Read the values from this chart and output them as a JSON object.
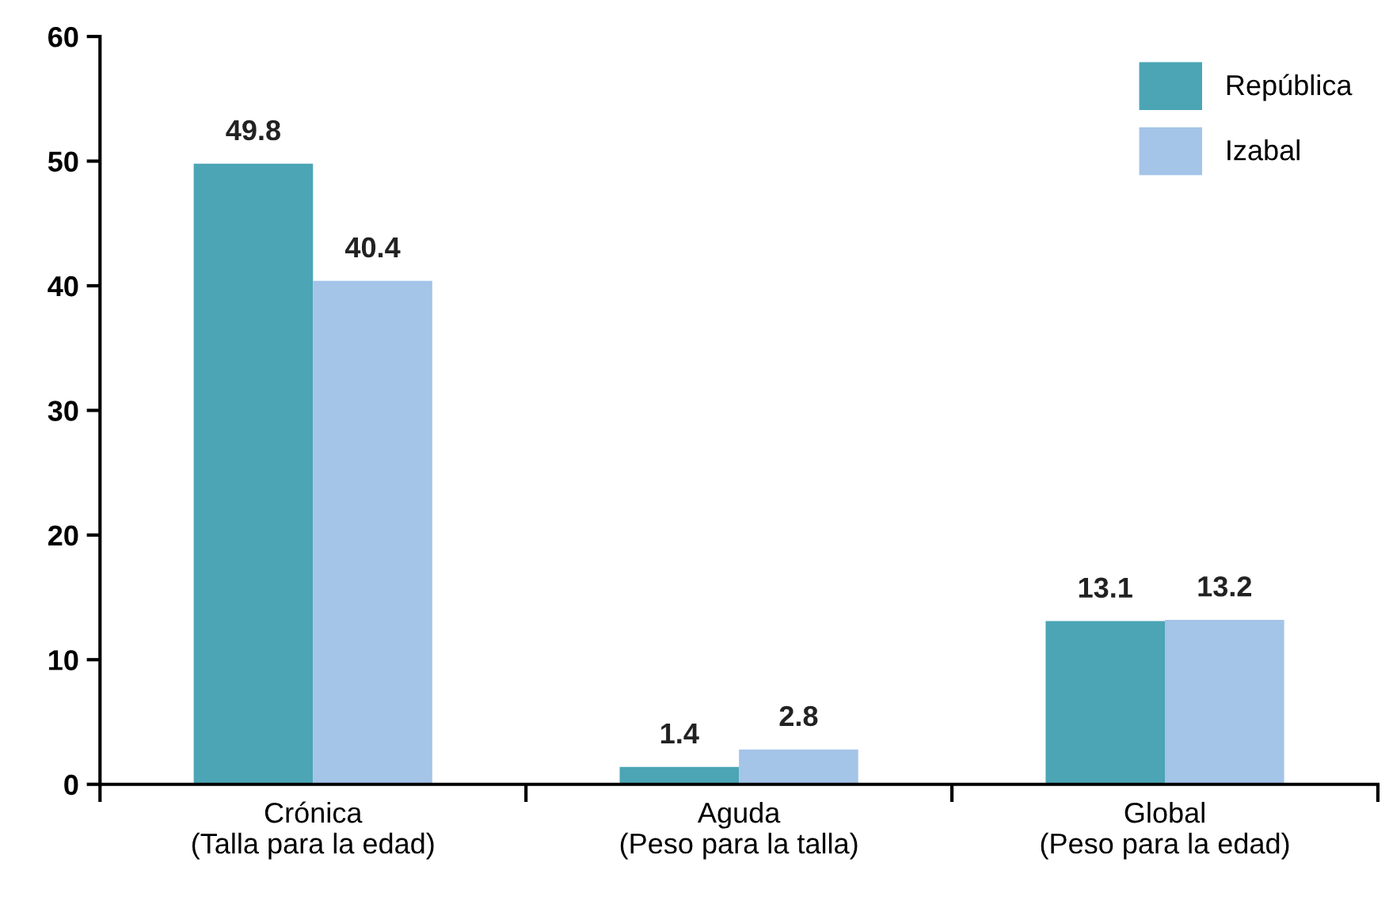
{
  "chart_data": {
    "type": "bar",
    "categories": [
      "Crónica\n(Talla para la edad)",
      "Aguda\n(Peso para la talla)",
      "Global\n(Peso para la edad)"
    ],
    "series": [
      {
        "name": "República",
        "color": "#4ba5b5",
        "values": [
          49.8,
          1.4,
          13.1
        ]
      },
      {
        "name": "Izabal",
        "color": "#a4c4e8",
        "values": [
          40.4,
          2.8,
          13.2
        ]
      }
    ],
    "ylim": [
      0,
      60
    ],
    "yticks": [
      0,
      10,
      20,
      30,
      40,
      50,
      60
    ],
    "data_labels": true,
    "legend": "top right",
    "grid": false
  }
}
